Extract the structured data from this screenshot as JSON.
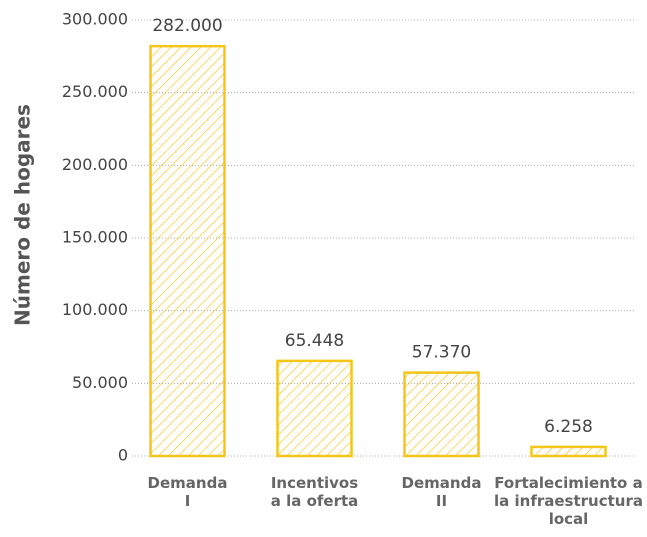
{
  "chart_data": {
    "type": "bar",
    "y_label": "Número de hogares",
    "categories": [
      "Demanda I",
      "Incentivos a la oferta",
      "Demanda II",
      "Fortalecimiento a la infraestructura local"
    ],
    "values": [
      282000,
      65448,
      57370,
      6258
    ],
    "value_labels": [
      "282.000",
      "65.448",
      "57.370",
      "6.258"
    ],
    "color": "#f5c518",
    "ylim": [
      0,
      300000
    ],
    "yticks": [
      0,
      {
        "value": 50000,
        "label": "50.000"
      },
      {
        "value": 100000,
        "label": "100.000"
      },
      {
        "value": 150000,
        "label": "150.000"
      },
      {
        "value": 200000,
        "label": "200.000"
      },
      {
        "value": 250000,
        "label": "250.000"
      },
      {
        "value": 300000,
        "label": "300.000"
      }
    ],
    "grid": true
  }
}
